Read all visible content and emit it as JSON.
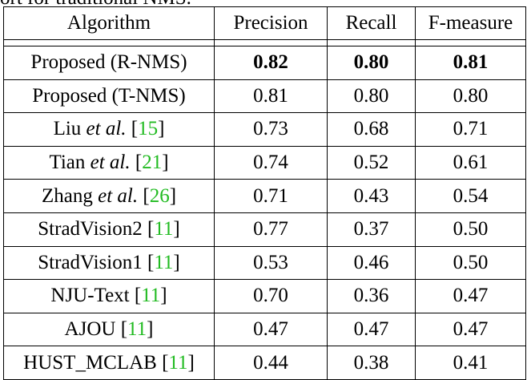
{
  "caption_fragment": "ort for traditional NMS.",
  "table": {
    "headers": [
      "Algorithm",
      "Precision",
      "Recall",
      "F-measure"
    ],
    "rows": [
      {
        "name": "Proposed (R-NMS)",
        "etal": "",
        "cite": "",
        "precision": "0.82",
        "recall": "0.80",
        "fmeasure": "0.81",
        "bold": true
      },
      {
        "name": "Proposed (T-NMS)",
        "etal": "",
        "cite": "",
        "precision": "0.81",
        "recall": "0.80",
        "fmeasure": "0.80",
        "bold": false
      },
      {
        "name": "Liu ",
        "etal": "et al.",
        "cite": "15",
        "precision": "0.73",
        "recall": "0.68",
        "fmeasure": "0.71",
        "bold": false
      },
      {
        "name": "Tian ",
        "etal": "et al.",
        "cite": "21",
        "precision": "0.74",
        "recall": "0.52",
        "fmeasure": "0.61",
        "bold": false
      },
      {
        "name": "Zhang ",
        "etal": "et al.",
        "cite": "26",
        "precision": "0.71",
        "recall": "0.43",
        "fmeasure": "0.54",
        "bold": false
      },
      {
        "name": "StradVision2 ",
        "etal": "",
        "cite": "11",
        "precision": "0.77",
        "recall": "0.37",
        "fmeasure": "0.50",
        "bold": false
      },
      {
        "name": "StradVision1 ",
        "etal": "",
        "cite": "11",
        "precision": "0.53",
        "recall": "0.46",
        "fmeasure": "0.50",
        "bold": false
      },
      {
        "name": "NJU-Text ",
        "etal": "",
        "cite": "11",
        "precision": "0.70",
        "recall": "0.36",
        "fmeasure": "0.47",
        "bold": false
      },
      {
        "name": "AJOU ",
        "etal": "",
        "cite": "11",
        "precision": "0.47",
        "recall": "0.47",
        "fmeasure": "0.47",
        "bold": false
      },
      {
        "name": "HUST_MCLAB ",
        "etal": "",
        "cite": "11",
        "precision": "0.44",
        "recall": "0.38",
        "fmeasure": "0.41",
        "bold": false
      }
    ]
  },
  "colors": {
    "citation": "#22bb22",
    "text": "#000000"
  }
}
